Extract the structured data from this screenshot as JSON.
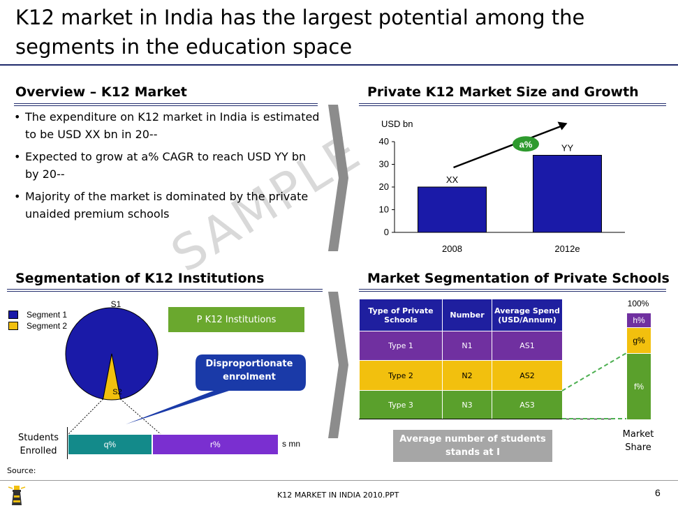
{
  "title": "K12 market in India has the largest potential among the segments in the education space",
  "watermark": "SAMPLE",
  "overview": {
    "heading": "Overview – K12 Market",
    "bullets": [
      "The expenditure on K12 market in India is estimated to be USD XX bn in 20--",
      "Expected to grow at a% CAGR to reach USD YY bn by 20--",
      "Majority of the market is dominated by the private unaided premium schools"
    ]
  },
  "market_size": {
    "heading": "Private K12 Market Size and Growth",
    "growth_label": "a%"
  },
  "chart_data": {
    "type": "bar",
    "ylabel": "USD bn",
    "categories": [
      "2008",
      "2012e"
    ],
    "values": [
      20,
      34
    ],
    "data_labels": [
      "XX",
      "YY"
    ],
    "ylim": [
      0,
      40
    ],
    "yticks": [
      0,
      10,
      20,
      30,
      40
    ],
    "bar_color": "#1a1aa8"
  },
  "segmentation": {
    "heading": "Segmentation of K12 Institutions",
    "legend": [
      {
        "label": "Segment 1",
        "color": "#1a1aa8"
      },
      {
        "label": "Segment 2",
        "color": "#f2c00e"
      }
    ],
    "pie_labels": {
      "s1": "S1",
      "s2": "S2"
    },
    "pie_share_s2": 0.06,
    "institutions_box": "P K12 Institutions",
    "callout": "Disproportionate enrolment",
    "students_label": "Students Enrolled",
    "bar_segments": [
      {
        "label": "q%",
        "color": "#138a8a",
        "share": 0.4
      },
      {
        "label": "r%",
        "color": "#7a2fd0",
        "share": 0.6
      }
    ],
    "bar_total": "s mn"
  },
  "private_schools": {
    "heading": "Market Segmentation of Private Schools",
    "columns": [
      "Type of Private Schools",
      "Number",
      "Average Spend (USD/Annum)"
    ],
    "rows": [
      [
        "Type 1",
        "N1",
        "AS1"
      ],
      [
        "Type 2",
        "N2",
        "AS2"
      ],
      [
        "Type 3",
        "N3",
        "AS3"
      ]
    ],
    "avg_box": "Average number of students stands at I",
    "share_top": "100%",
    "share_segments": [
      {
        "label": "h%",
        "color": "#7030a0"
      },
      {
        "label": "g%",
        "color": "#f2c00e"
      },
      {
        "label": "f%",
        "color": "#5aa02c"
      }
    ],
    "share_label": "Market Share"
  },
  "footer": {
    "source": "Source:",
    "doc": "K12 MARKET IN INDIA 2010.PPT",
    "page": "6"
  }
}
